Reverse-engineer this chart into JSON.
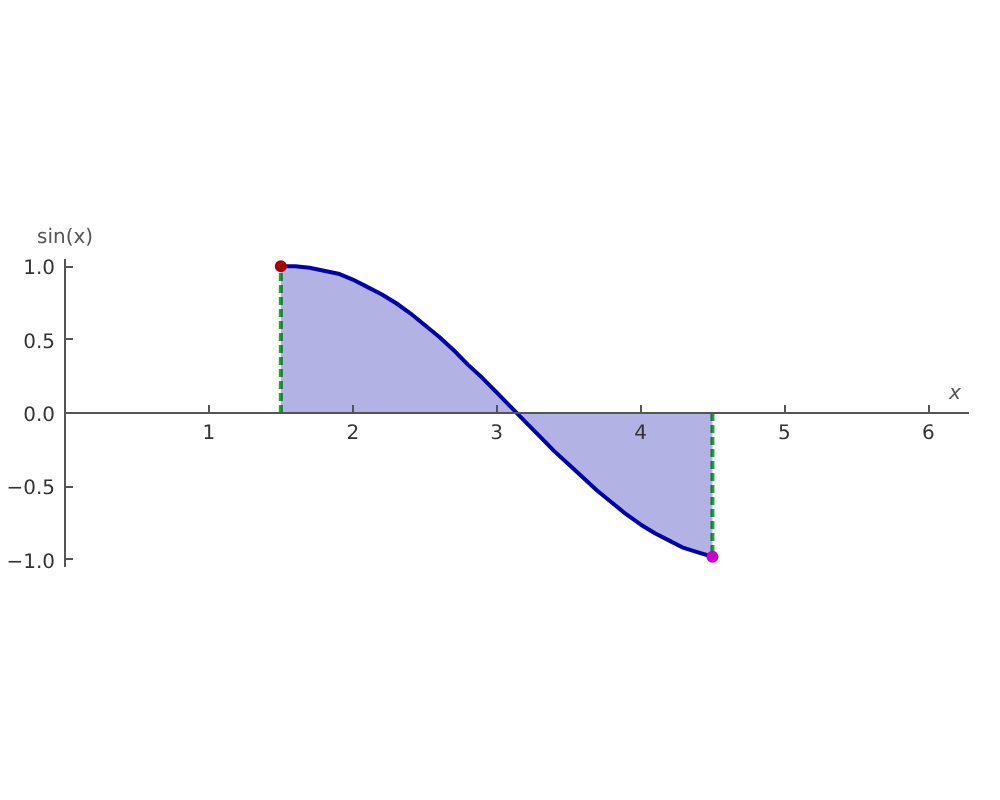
{
  "chart_data": {
    "type": "area",
    "xlabel": "x",
    "ylabel": "sin(x)",
    "xlim": [
      0,
      6.2832
    ],
    "ylim": [
      -1.05,
      1.05
    ],
    "xticks": [
      1,
      2,
      3,
      4,
      5,
      6
    ],
    "yticks": [
      {
        "value": -1,
        "label": "−1.0"
      },
      {
        "value": -0.5,
        "label": "−0.5"
      },
      {
        "value": 0,
        "label": "0.0"
      },
      {
        "value": 0.5,
        "label": "0.5"
      },
      {
        "value": 1,
        "label": "1.0"
      }
    ],
    "grid": false,
    "line_style": "solid",
    "series": [
      {
        "color": "#0000aa",
        "x": [
          1.5,
          1.6,
          1.7,
          1.8,
          1.9,
          2.0,
          2.1,
          2.2,
          2.3,
          2.4,
          2.5,
          2.6,
          2.7,
          2.8,
          2.9,
          3.0,
          3.1,
          3.2,
          3.3,
          3.4,
          3.5,
          3.6,
          3.7,
          3.8,
          3.9,
          4.0,
          4.1,
          4.2,
          4.3,
          4.4,
          4.5
        ],
        "values": [
          1.0,
          1.0,
          0.99,
          0.97,
          0.95,
          0.91,
          0.86,
          0.81,
          0.75,
          0.68,
          0.6,
          0.52,
          0.43,
          0.33,
          0.24,
          0.14,
          0.04,
          -0.06,
          -0.16,
          -0.26,
          -0.35,
          -0.44,
          -0.53,
          -0.61,
          -0.69,
          -0.76,
          -0.82,
          -0.87,
          -0.92,
          -0.95,
          -0.98
        ]
      },
      {
        "type": "scatter",
        "marker": "circle",
        "x": [
          1.5,
          4.5
        ],
        "values": [
          1.0,
          -0.98
        ],
        "colors": [
          "#aa0000",
          "#cc00cc"
        ]
      }
    ],
    "ref_lines": [
      {
        "axis": "x",
        "value": 1.5,
        "color": "#22aa22",
        "line_style": "dashed"
      },
      {
        "axis": "x",
        "value": 4.5,
        "color": "#22aa22",
        "line_style": "dashed"
      }
    ]
  }
}
